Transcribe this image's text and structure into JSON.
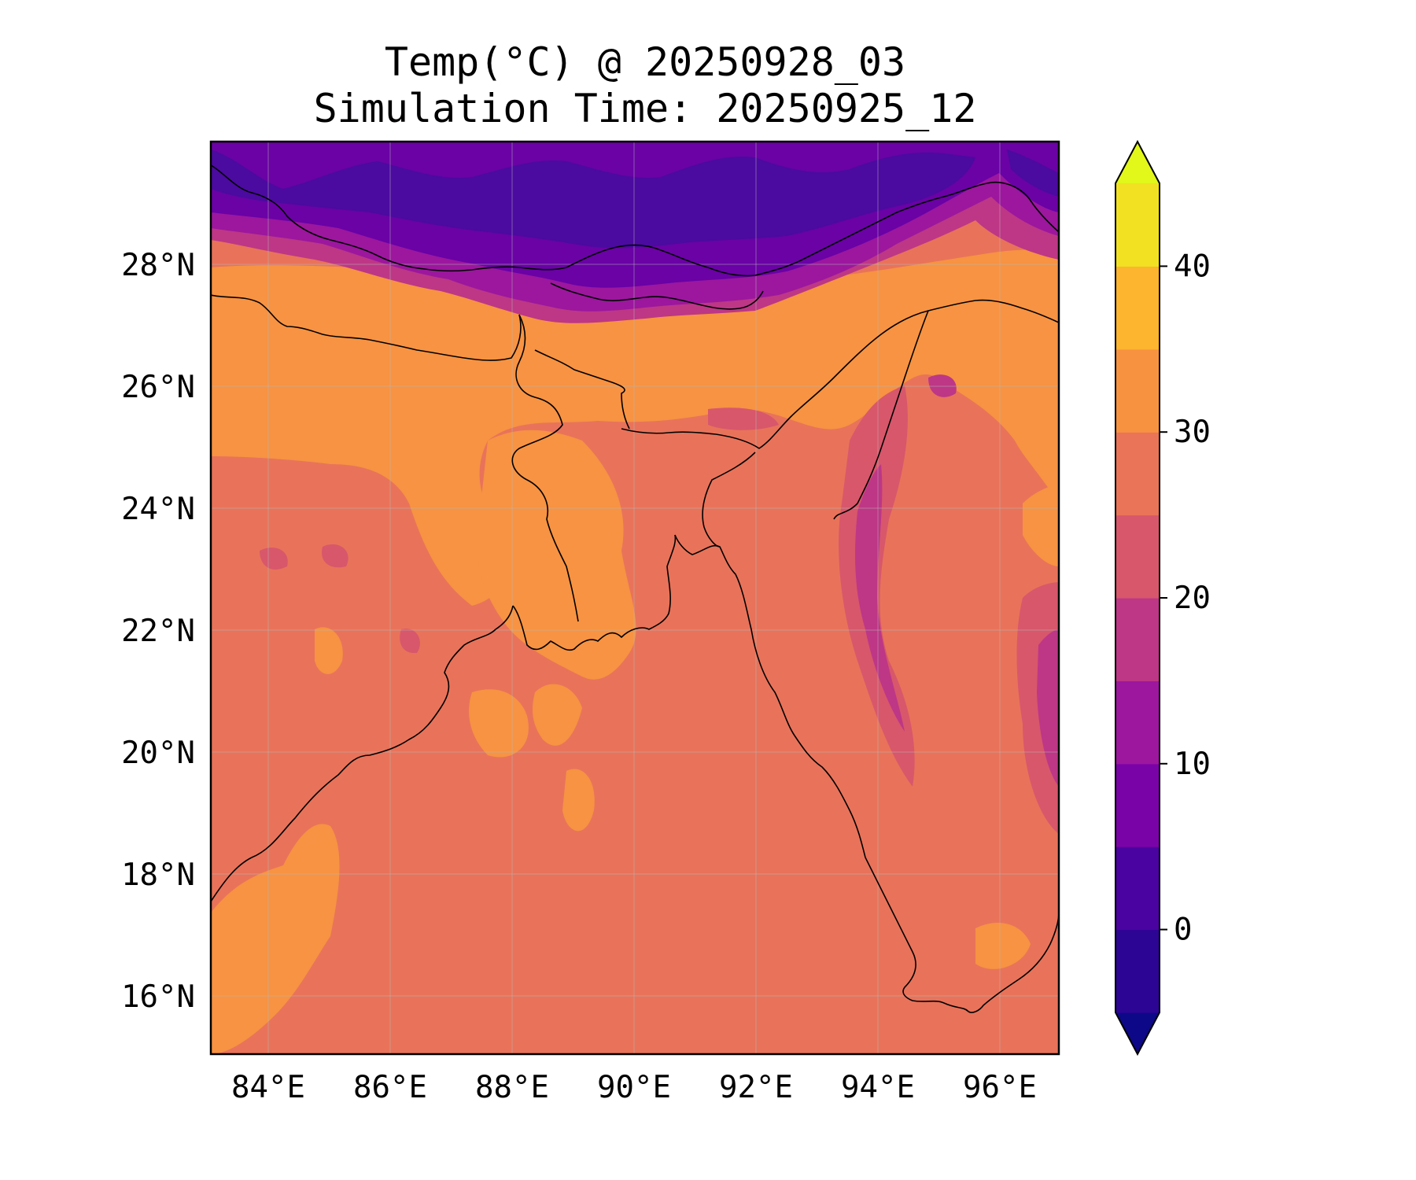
{
  "title": {
    "line1": "Temp(°C) @ 20250928_03",
    "line2": "Simulation Time: 20250925_12"
  },
  "map": {
    "x_ticks": [
      "84°E",
      "86°E",
      "88°E",
      "90°E",
      "92°E",
      "94°E",
      "96°E"
    ],
    "y_ticks": [
      "16°N",
      "18°N",
      "20°N",
      "22°N",
      "24°N",
      "26°N",
      "28°N"
    ],
    "lon_range": [
      83.1,
      97.0
    ],
    "lat_range": [
      15.0,
      30.0
    ],
    "gridlines": true,
    "colormap": "plasma"
  },
  "colorbar": {
    "ticks": [
      "0",
      "10",
      "20",
      "30",
      "40"
    ],
    "levels": [
      -5,
      0,
      5,
      10,
      15,
      20,
      25,
      30,
      35,
      40,
      45
    ],
    "extend": "both",
    "colors": {
      "under": "#0d0887",
      "bands": [
        "#2c0594",
        "#4a02a0",
        "#7a03a8",
        "#9c179e",
        "#bd3786",
        "#d8576b",
        "#ea7457",
        "#f79340",
        "#fdb42f",
        "#f1e122"
      ],
      "over": "#e2f81a"
    }
  },
  "field_colors": {
    "cold": "#4b0aa0",
    "cold_mid": "#6a02a6",
    "mid": "#9c179e",
    "cool": "#bd3786",
    "mild": "#d8576b",
    "warm": "#e8735a",
    "hot": "#f79342",
    "coast": "#000000"
  }
}
